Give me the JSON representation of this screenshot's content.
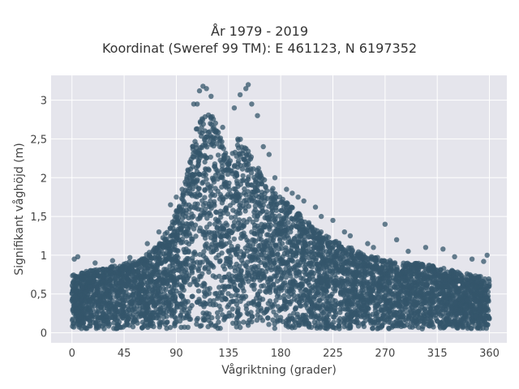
{
  "chart_data": {
    "type": "scatter",
    "title_line1": "År 1979 - 2019",
    "title_line2": "Koordinat (Sweref 99 TM): E 461123, N 6197352",
    "xlabel": "Vågriktning (grader)",
    "ylabel": "Signifikant våghöjd (m)",
    "xlim": [
      -18,
      375
    ],
    "ylim": [
      -0.13,
      3.32
    ],
    "xticks": [
      0,
      45,
      90,
      135,
      180,
      225,
      270,
      315,
      360
    ],
    "yticks": [
      0,
      0.5,
      1,
      1.5,
      2,
      2.5,
      3
    ],
    "ytick_labels": [
      "0",
      "0,5",
      "1",
      "1,5",
      "2",
      "2,5",
      "3"
    ],
    "grid": true,
    "background": "#e5e5ec",
    "marker_color": "#34566b",
    "envelope": {
      "x": [
        0,
        15,
        30,
        45,
        60,
        75,
        85,
        95,
        105,
        112,
        120,
        128,
        135,
        145,
        155,
        165,
        180,
        195,
        210,
        225,
        240,
        255,
        270,
        285,
        300,
        315,
        330,
        345,
        360
      ],
      "upper": [
        0.75,
        0.8,
        0.85,
        0.9,
        0.95,
        1.15,
        1.4,
        1.75,
        2.5,
        2.9,
        2.85,
        2.55,
        2.3,
        2.55,
        2.3,
        2.0,
        1.75,
        1.55,
        1.35,
        1.2,
        1.1,
        1.0,
        0.95,
        0.9,
        0.9,
        0.85,
        0.8,
        0.75,
        0.7
      ],
      "lower": 0.05
    },
    "outliers": [
      [
        105,
        2.95
      ],
      [
        110,
        3.12
      ],
      [
        113,
        3.18
      ],
      [
        116,
        3.15
      ],
      [
        120,
        3.05
      ],
      [
        108,
        2.95
      ],
      [
        150,
        3.15
      ],
      [
        152,
        3.2
      ],
      [
        145,
        3.07
      ],
      [
        140,
        2.9
      ],
      [
        160,
        2.8
      ],
      [
        155,
        2.95
      ],
      [
        90,
        1.75
      ],
      [
        85,
        1.65
      ],
      [
        95,
        1.85
      ],
      [
        175,
        2.0
      ],
      [
        185,
        1.85
      ],
      [
        200,
        1.7
      ],
      [
        210,
        1.62
      ],
      [
        225,
        1.45
      ],
      [
        235,
        1.3
      ],
      [
        255,
        1.15
      ],
      [
        270,
        1.4
      ],
      [
        280,
        1.2
      ],
      [
        305,
        1.1
      ],
      [
        320,
        1.08
      ],
      [
        345,
        0.95
      ],
      [
        358,
        1.0
      ],
      [
        355,
        0.92
      ],
      [
        5,
        0.98
      ],
      [
        2,
        0.95
      ],
      [
        20,
        0.9
      ],
      [
        35,
        0.93
      ],
      [
        50,
        0.97
      ],
      [
        65,
        1.15
      ],
      [
        75,
        1.3
      ],
      [
        240,
        1.25
      ],
      [
        260,
        1.1
      ],
      [
        290,
        1.05
      ],
      [
        330,
        0.98
      ],
      [
        125,
        2.6
      ],
      [
        130,
        2.65
      ],
      [
        165,
        2.4
      ],
      [
        170,
        2.3
      ],
      [
        100,
        2.1
      ],
      [
        190,
        1.8
      ],
      [
        195,
        1.75
      ],
      [
        215,
        1.5
      ]
    ]
  }
}
